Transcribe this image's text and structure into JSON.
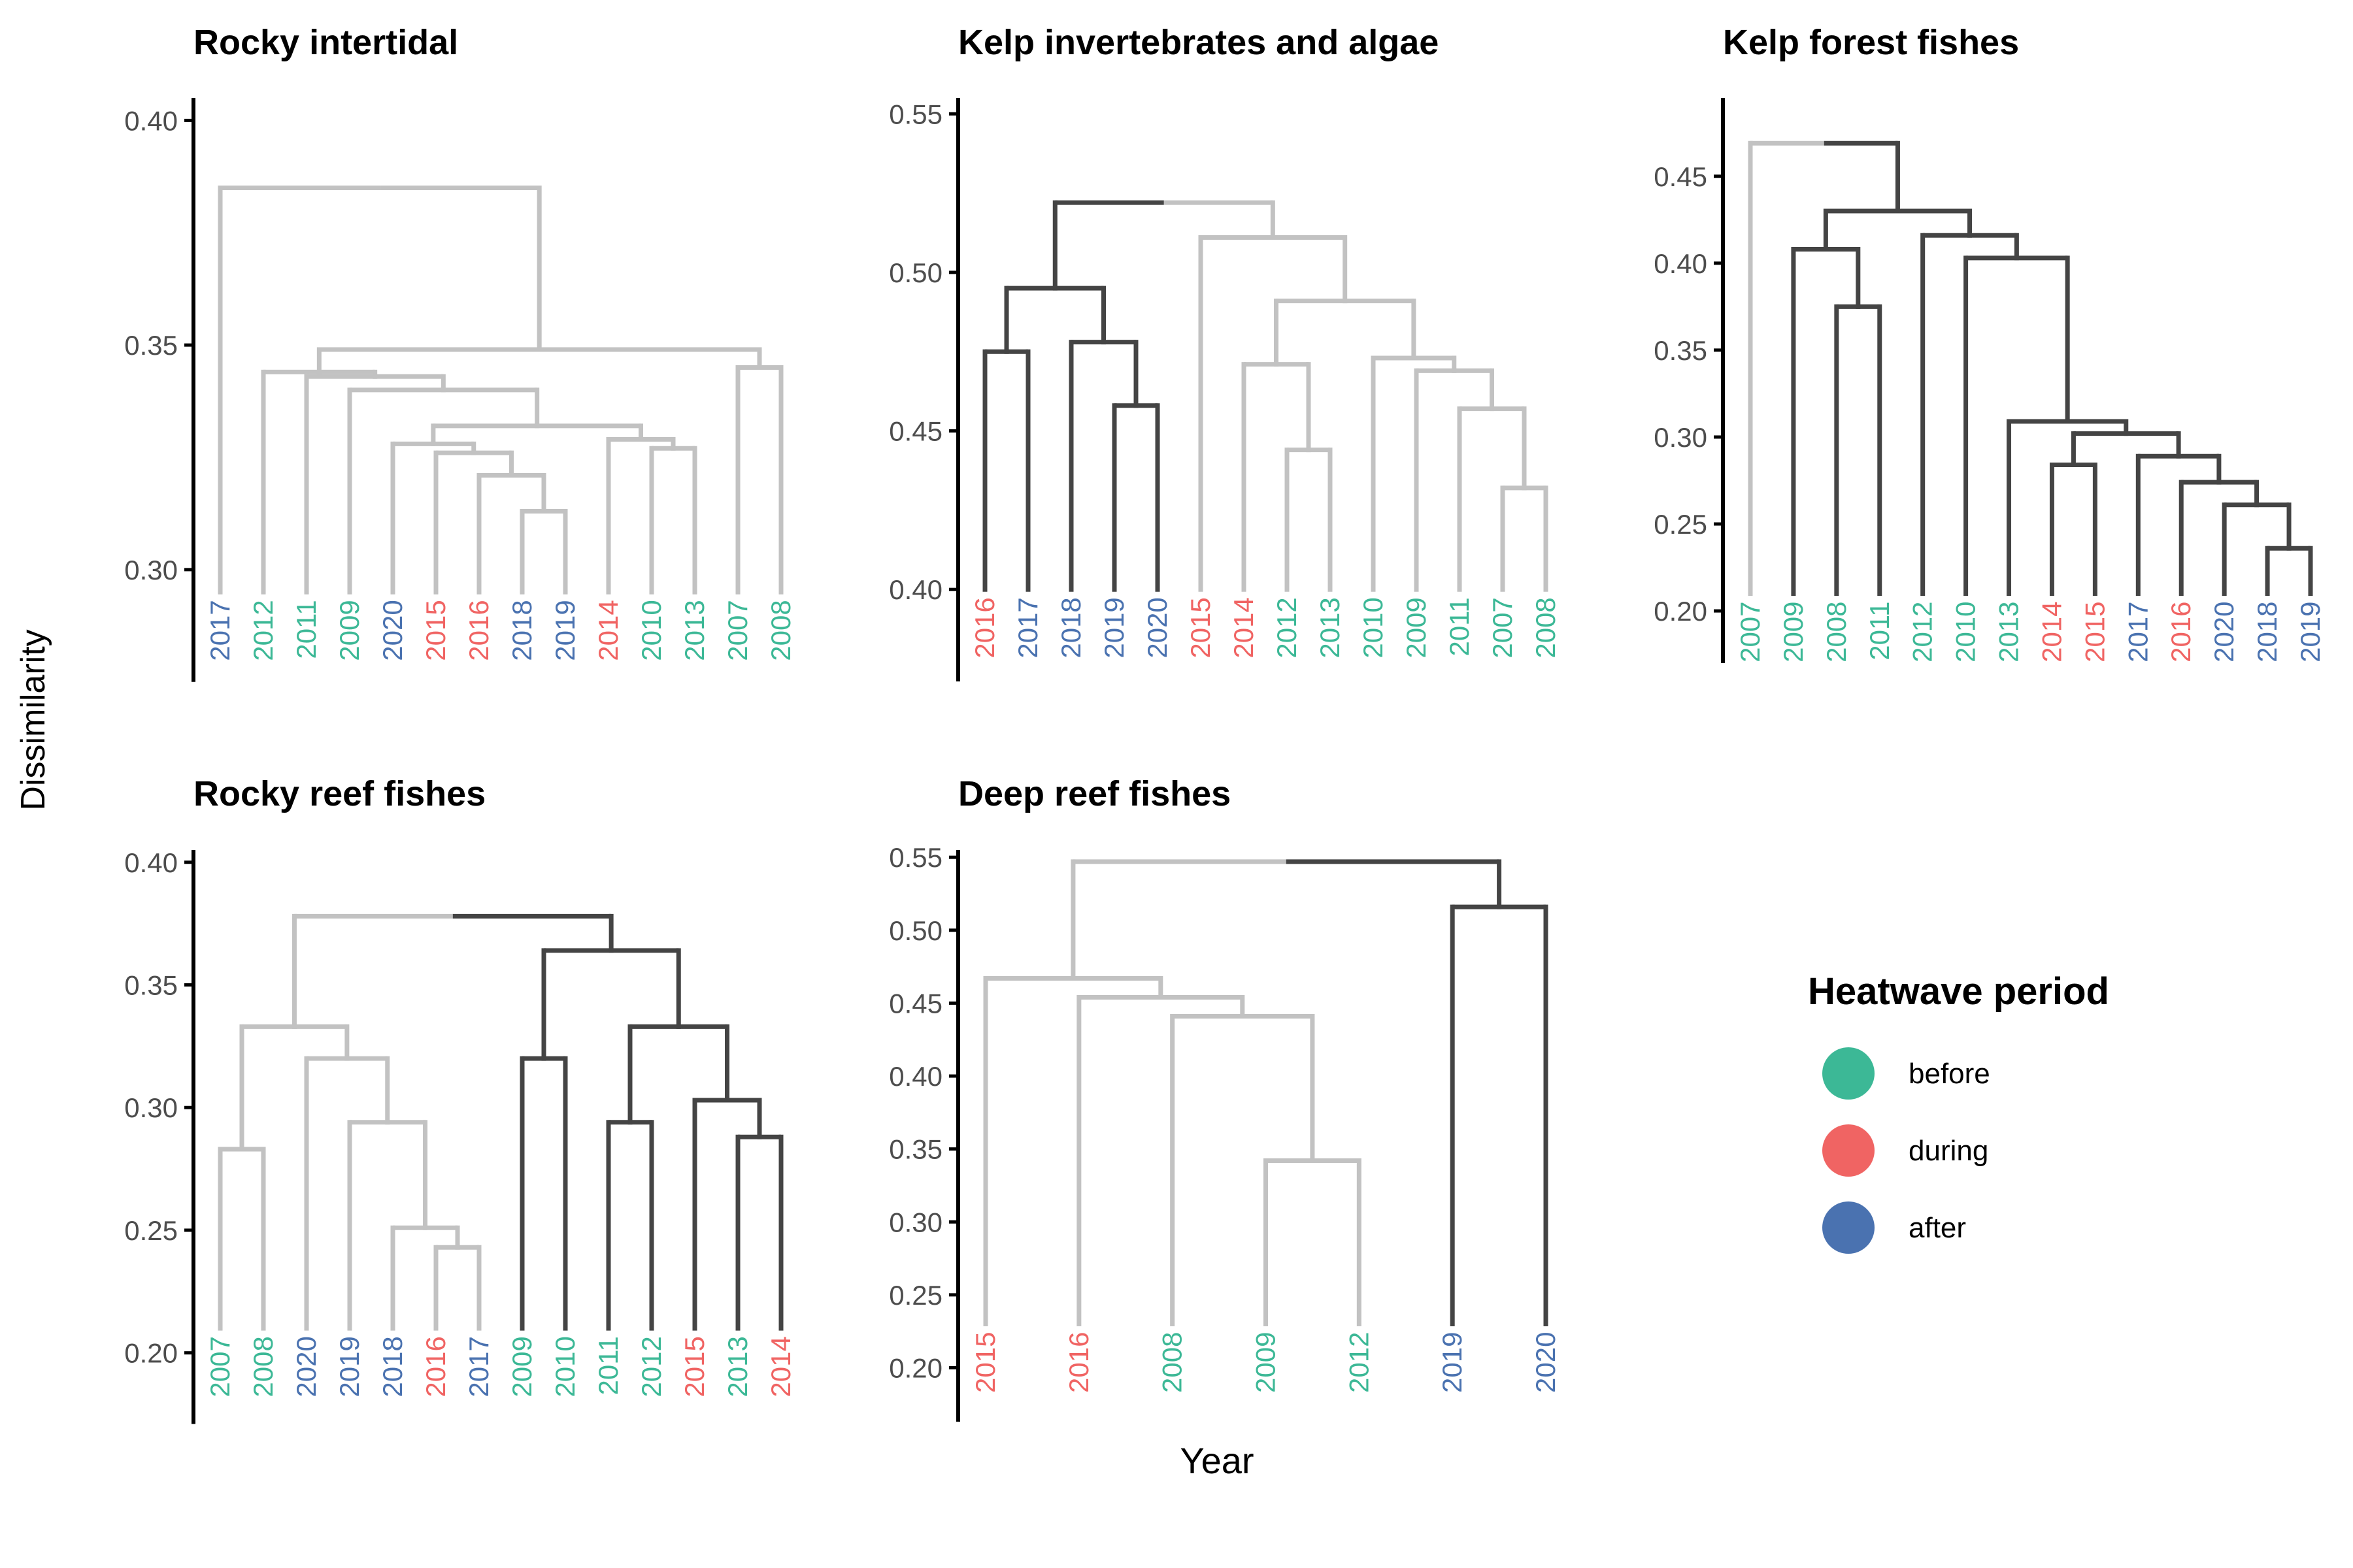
{
  "figure": {
    "y_axis_label": "Dissimilarity",
    "x_axis_label": "Year"
  },
  "colors": {
    "before": "#3cb896",
    "during": "#f06463",
    "after": "#4a72b0",
    "link_dark": "#444444",
    "link_light": "#c2c2c2",
    "axis": "#000000"
  },
  "legend": {
    "title": "Heatwave period",
    "items": [
      {
        "key": "before",
        "label": "before"
      },
      {
        "key": "during",
        "label": "during"
      },
      {
        "key": "after",
        "label": "after"
      }
    ]
  },
  "chart_data": [
    {
      "type": "dendrogram",
      "title": "Rocky intertidal",
      "ylim": [
        0.285,
        0.405
      ],
      "yticks": [
        0.3,
        0.35,
        0.4
      ],
      "y_axis_bottom": 0.275,
      "leaf_base": 0.295,
      "leaves": [
        {
          "year": "2017",
          "period": "after"
        },
        {
          "year": "2012",
          "period": "before"
        },
        {
          "year": "2011",
          "period": "before"
        },
        {
          "year": "2009",
          "period": "before"
        },
        {
          "year": "2020",
          "period": "after"
        },
        {
          "year": "2015",
          "period": "during"
        },
        {
          "year": "2016",
          "period": "during"
        },
        {
          "year": "2018",
          "period": "after"
        },
        {
          "year": "2019",
          "period": "after"
        },
        {
          "year": "2014",
          "period": "during"
        },
        {
          "year": "2010",
          "period": "before"
        },
        {
          "year": "2013",
          "period": "before"
        },
        {
          "year": "2007",
          "period": "before"
        },
        {
          "year": "2008",
          "period": "before"
        }
      ],
      "merges": [
        {
          "a": "L7",
          "b": "L8",
          "h": 0.313,
          "c": "light"
        },
        {
          "a": "L6",
          "b": "M0",
          "h": 0.321,
          "c": "light"
        },
        {
          "a": "L5",
          "b": "M1",
          "h": 0.326,
          "c": "light"
        },
        {
          "a": "L4",
          "b": "M2",
          "h": 0.328,
          "c": "light"
        },
        {
          "a": "L11",
          "b": "L10",
          "h": 0.327,
          "c": "light"
        },
        {
          "a": "L9",
          "b": "M4",
          "h": 0.329,
          "c": "light"
        },
        {
          "a": "M3",
          "b": "M5",
          "h": 0.332,
          "c": "light"
        },
        {
          "a": "L3",
          "b": "M6",
          "h": 0.34,
          "c": "light"
        },
        {
          "a": "L2",
          "b": "M7",
          "h": 0.343,
          "c": "light"
        },
        {
          "a": "L1",
          "b": "M8",
          "h": 0.344,
          "c": "light"
        },
        {
          "a": "L12",
          "b": "L13",
          "h": 0.345,
          "c": "light"
        },
        {
          "a": "M9",
          "b": "M10",
          "h": 0.349,
          "c": "light"
        },
        {
          "a": "L0",
          "b": "M11",
          "h": 0.385,
          "c": "mixed"
        }
      ]
    },
    {
      "type": "dendrogram",
      "title": "Kelp invertebrates and algae",
      "ylim": [
        0.385,
        0.555
      ],
      "yticks": [
        0.4,
        0.45,
        0.5,
        0.55
      ],
      "y_axis_bottom": 0.371,
      "leaf_base": 0.4,
      "leaves": [
        {
          "year": "2016",
          "period": "during"
        },
        {
          "year": "2017",
          "period": "after"
        },
        {
          "year": "2018",
          "period": "after"
        },
        {
          "year": "2019",
          "period": "after"
        },
        {
          "year": "2020",
          "period": "after"
        },
        {
          "year": "2015",
          "period": "during"
        },
        {
          "year": "2014",
          "period": "during"
        },
        {
          "year": "2012",
          "period": "before"
        },
        {
          "year": "2013",
          "period": "before"
        },
        {
          "year": "2010",
          "period": "before"
        },
        {
          "year": "2009",
          "period": "before"
        },
        {
          "year": "2011",
          "period": "before"
        },
        {
          "year": "2007",
          "period": "before"
        },
        {
          "year": "2008",
          "period": "before"
        }
      ],
      "merges": [
        {
          "a": "L0",
          "b": "L1",
          "h": 0.475,
          "c": "dark"
        },
        {
          "a": "L3",
          "b": "L4",
          "h": 0.458,
          "c": "dark"
        },
        {
          "a": "L2",
          "b": "M1",
          "h": 0.478,
          "c": "dark"
        },
        {
          "a": "M0",
          "b": "M2",
          "h": 0.495,
          "c": "dark"
        },
        {
          "a": "L12",
          "b": "L13",
          "h": 0.432,
          "c": "light"
        },
        {
          "a": "L11",
          "b": "M4",
          "h": 0.457,
          "c": "light"
        },
        {
          "a": "L10",
          "b": "M5",
          "h": 0.469,
          "c": "light"
        },
        {
          "a": "L9",
          "b": "M6",
          "h": 0.473,
          "c": "light"
        },
        {
          "a": "L7",
          "b": "L8",
          "h": 0.444,
          "c": "light"
        },
        {
          "a": "L6",
          "b": "M8",
          "h": 0.471,
          "c": "light"
        },
        {
          "a": "M9",
          "b": "M7",
          "h": 0.491,
          "c": "light"
        },
        {
          "a": "L5",
          "b": "M10",
          "h": 0.511,
          "c": "light"
        },
        {
          "a": "M3",
          "b": "M11",
          "h": 0.522,
          "c": "mixed"
        }
      ]
    },
    {
      "type": "dendrogram",
      "title": "Kelp forest fishes",
      "ylim": [
        0.185,
        0.495
      ],
      "yticks": [
        0.2,
        0.25,
        0.3,
        0.35,
        0.4,
        0.45
      ],
      "y_axis_bottom": 0.17,
      "leaf_base": 0.21,
      "leaves": [
        {
          "year": "2007",
          "period": "before"
        },
        {
          "year": "2009",
          "period": "before"
        },
        {
          "year": "2008",
          "period": "before"
        },
        {
          "year": "2011",
          "period": "before"
        },
        {
          "year": "2012",
          "period": "before"
        },
        {
          "year": "2010",
          "period": "before"
        },
        {
          "year": "2013",
          "period": "before"
        },
        {
          "year": "2014",
          "period": "during"
        },
        {
          "year": "2015",
          "period": "during"
        },
        {
          "year": "2017",
          "period": "after"
        },
        {
          "year": "2016",
          "period": "during"
        },
        {
          "year": "2020",
          "period": "after"
        },
        {
          "year": "2018",
          "period": "after"
        },
        {
          "year": "2019",
          "period": "after"
        }
      ],
      "merges": [
        {
          "a": "L12",
          "b": "L13",
          "h": 0.236,
          "c": "dark"
        },
        {
          "a": "L11",
          "b": "M0",
          "h": 0.261,
          "c": "dark"
        },
        {
          "a": "L10",
          "b": "M1",
          "h": 0.274,
          "c": "dark"
        },
        {
          "a": "L9",
          "b": "M2",
          "h": 0.289,
          "c": "dark"
        },
        {
          "a": "L7",
          "b": "L8",
          "h": 0.284,
          "c": "dark"
        },
        {
          "a": "M4",
          "b": "M3",
          "h": 0.302,
          "c": "dark"
        },
        {
          "a": "L6",
          "b": "M5",
          "h": 0.309,
          "c": "dark"
        },
        {
          "a": "L5",
          "b": "M6",
          "h": 0.403,
          "c": "dark"
        },
        {
          "a": "L4",
          "b": "M7",
          "h": 0.416,
          "c": "dark"
        },
        {
          "a": "L2",
          "b": "L3",
          "h": 0.375,
          "c": "dark"
        },
        {
          "a": "L1",
          "b": "M9",
          "h": 0.408,
          "c": "dark"
        },
        {
          "a": "M10",
          "b": "M8",
          "h": 0.43,
          "c": "dark"
        },
        {
          "a": "L0",
          "b": "M11",
          "h": 0.469,
          "c": "mixed"
        }
      ]
    },
    {
      "type": "dendrogram",
      "title": "Rocky reef fishes",
      "ylim": [
        0.185,
        0.405
      ],
      "yticks": [
        0.2,
        0.25,
        0.3,
        0.35,
        0.4
      ],
      "y_axis_bottom": 0.171,
      "leaf_base": 0.21,
      "leaves": [
        {
          "year": "2007",
          "period": "before"
        },
        {
          "year": "2008",
          "period": "before"
        },
        {
          "year": "2020",
          "period": "after"
        },
        {
          "year": "2019",
          "period": "after"
        },
        {
          "year": "2018",
          "period": "after"
        },
        {
          "year": "2016",
          "period": "during"
        },
        {
          "year": "2017",
          "period": "after"
        },
        {
          "year": "2009",
          "period": "before"
        },
        {
          "year": "2010",
          "period": "before"
        },
        {
          "year": "2011",
          "period": "before"
        },
        {
          "year": "2012",
          "period": "before"
        },
        {
          "year": "2015",
          "period": "during"
        },
        {
          "year": "2013",
          "period": "before"
        },
        {
          "year": "2014",
          "period": "during"
        }
      ],
      "merges": [
        {
          "a": "L0",
          "b": "L1",
          "h": 0.283,
          "c": "light"
        },
        {
          "a": "L5",
          "b": "L6",
          "h": 0.243,
          "c": "light"
        },
        {
          "a": "L4",
          "b": "M1",
          "h": 0.251,
          "c": "light"
        },
        {
          "a": "L3",
          "b": "M2",
          "h": 0.294,
          "c": "light"
        },
        {
          "a": "L2",
          "b": "M3",
          "h": 0.32,
          "c": "light"
        },
        {
          "a": "M0",
          "b": "M4",
          "h": 0.333,
          "c": "light"
        },
        {
          "a": "L7",
          "b": "L8",
          "h": 0.32,
          "c": "dark"
        },
        {
          "a": "L9",
          "b": "L10",
          "h": 0.294,
          "c": "dark"
        },
        {
          "a": "L12",
          "b": "L13",
          "h": 0.288,
          "c": "dark"
        },
        {
          "a": "L11",
          "b": "M8",
          "h": 0.303,
          "c": "dark"
        },
        {
          "a": "M7",
          "b": "M9",
          "h": 0.333,
          "c": "dark"
        },
        {
          "a": "M6",
          "b": "M10",
          "h": 0.364,
          "c": "dark"
        },
        {
          "a": "M5",
          "b": "M11",
          "h": 0.378,
          "c": "mixed"
        }
      ]
    },
    {
      "type": "dendrogram",
      "title": "Deep reef fishes",
      "ylim": [
        0.185,
        0.555
      ],
      "yticks": [
        0.2,
        0.25,
        0.3,
        0.35,
        0.4,
        0.45,
        0.5,
        0.55
      ],
      "y_axis_bottom": 0.163,
      "leaf_base": 0.23,
      "leaves": [
        {
          "year": "2015",
          "period": "during"
        },
        {
          "year": "2016",
          "period": "during"
        },
        {
          "year": "2008",
          "period": "before"
        },
        {
          "year": "2009",
          "period": "before"
        },
        {
          "year": "2012",
          "period": "before"
        },
        {
          "year": "2019",
          "period": "after"
        },
        {
          "year": "2020",
          "period": "after"
        }
      ],
      "merges": [
        {
          "a": "L3",
          "b": "L4",
          "h": 0.342,
          "c": "light"
        },
        {
          "a": "L2",
          "b": "M0",
          "h": 0.441,
          "c": "light"
        },
        {
          "a": "L1",
          "b": "M1",
          "h": 0.454,
          "c": "light"
        },
        {
          "a": "L0",
          "b": "M2",
          "h": 0.467,
          "c": "light"
        },
        {
          "a": "L5",
          "b": "L6",
          "h": 0.516,
          "c": "dark"
        },
        {
          "a": "M3",
          "b": "M4",
          "h": 0.547,
          "c": "mixed"
        }
      ]
    }
  ]
}
